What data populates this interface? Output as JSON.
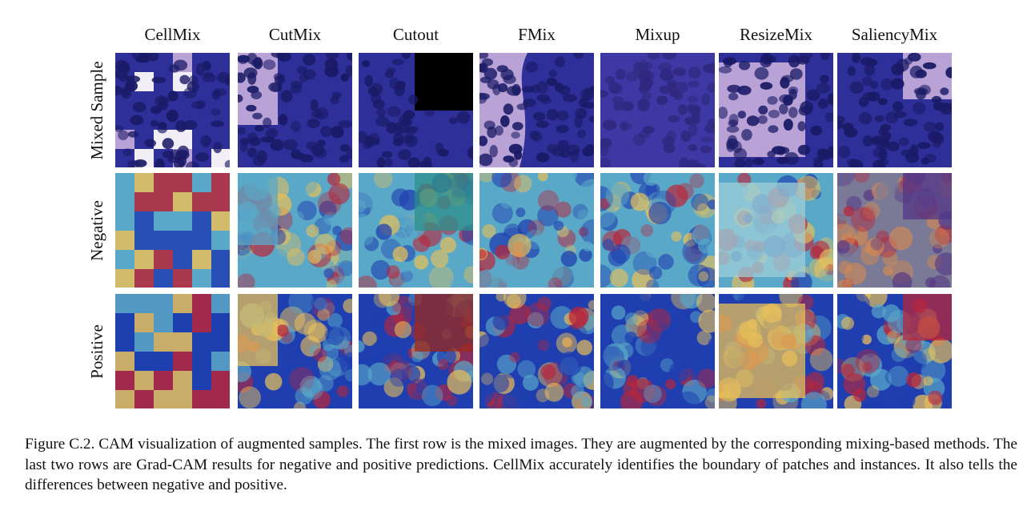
{
  "figure": {
    "columns": [
      "CellMix",
      "CutMix",
      "Cutout",
      "FMix",
      "Mixup",
      "ResizeMix",
      "SaliencyMix"
    ],
    "rows": [
      "Mixed Sample",
      "Negative",
      "Positive"
    ]
  },
  "caption": {
    "text": "Figure C.2.  CAM visualization of augmented samples.  The first row is the mixed images.  They are augmented by the corresponding mixing-based methods. The last two rows are Grad-CAM results for negative and positive predictions. CellMix accurately identifies the boundary of patches and instances. It also tells the differences between negative and positive."
  },
  "colors": {
    "stain_background": "#2f2f9a",
    "stain_nuclei": "#1a1a66",
    "stain_light": "#b9a3d6",
    "cam_hot": "#b8263a",
    "cam_warm": "#e8c05a",
    "cam_mid": "#5aa8c8",
    "cam_cold": "#1f3fb0",
    "cutout_fill": "#000000"
  }
}
